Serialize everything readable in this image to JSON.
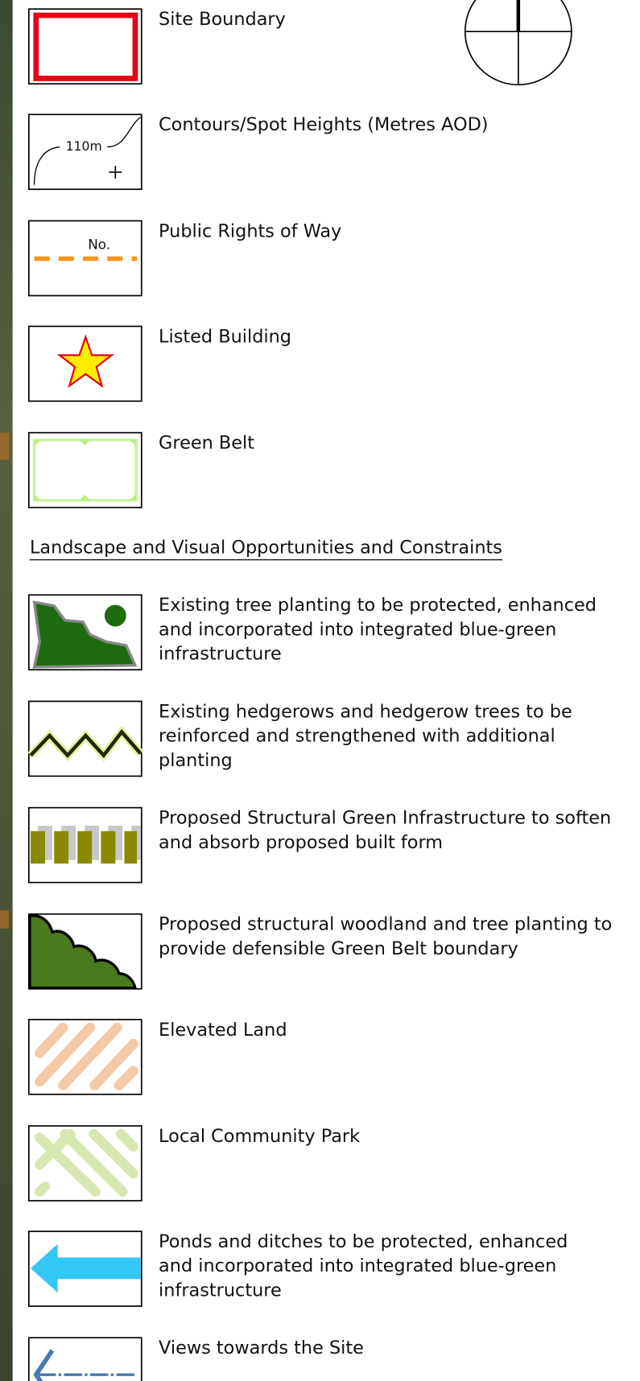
{
  "legend": {
    "items": [
      {
        "lines": [
          "Site Boundary"
        ]
      },
      {
        "lines": [
          "Contours/Spot Heights (Metres AOD)"
        ]
      },
      {
        "lines": [
          "Public Rights of Way"
        ]
      },
      {
        "lines": [
          "Listed Building"
        ]
      },
      {
        "lines": [
          "Green Belt"
        ]
      }
    ],
    "section_heading": "Landscape and Visual Opportunities and Constraints",
    "section_items": [
      {
        "lines": [
          "Existing tree planting to be protected, enhanced",
          "and incorporated into integrated blue-green",
          "infrastructure"
        ]
      },
      {
        "lines": [
          "Existing hedgerows and hedgerow trees to be",
          "reinforced and strengthened with additional",
          "planting"
        ]
      },
      {
        "lines": [
          "Proposed Structural Green Infrastructure to soften",
          "and absorb proposed built form"
        ]
      },
      {
        "lines": [
          "Proposed structural woodland and tree planting to",
          "provide defensible Green Belt boundary"
        ]
      },
      {
        "lines": [
          "Elevated Land"
        ]
      },
      {
        "lines": [
          "Local Community Park"
        ]
      },
      {
        "lines": [
          "Ponds and ditches to be protected, enhanced",
          "and incorporated into integrated blue-green",
          "infrastructure"
        ]
      },
      {
        "lines": [
          "Views towards the Site"
        ]
      }
    ]
  },
  "symbols": {
    "contour_label": "110m",
    "prow_label": "No."
  }
}
